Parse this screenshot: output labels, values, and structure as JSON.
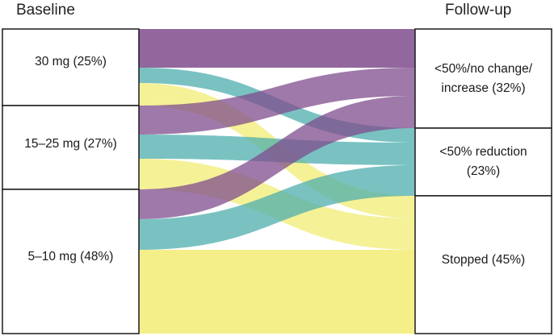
{
  "headers": {
    "left": "Baseline",
    "right": "Follow-up"
  },
  "baseline_nodes": [
    {
      "label": "30 mg (25%)"
    },
    {
      "label": "15–25 mg (27%)"
    },
    {
      "label": "5–10 mg (48%)"
    }
  ],
  "followup_nodes": [
    {
      "label_line1": "<50%/no change/",
      "label_line2": "increase (32%)"
    },
    {
      "label_line1": "<50% reduction",
      "label_line2": "(23%)"
    },
    {
      "label_line1": "Stopped (45%)",
      "label_line2": ""
    }
  ],
  "colors": {
    "no_change_increase": "#7f4c8c",
    "reduction": "#4eaeae",
    "stopped": "#f2ec74"
  }
}
